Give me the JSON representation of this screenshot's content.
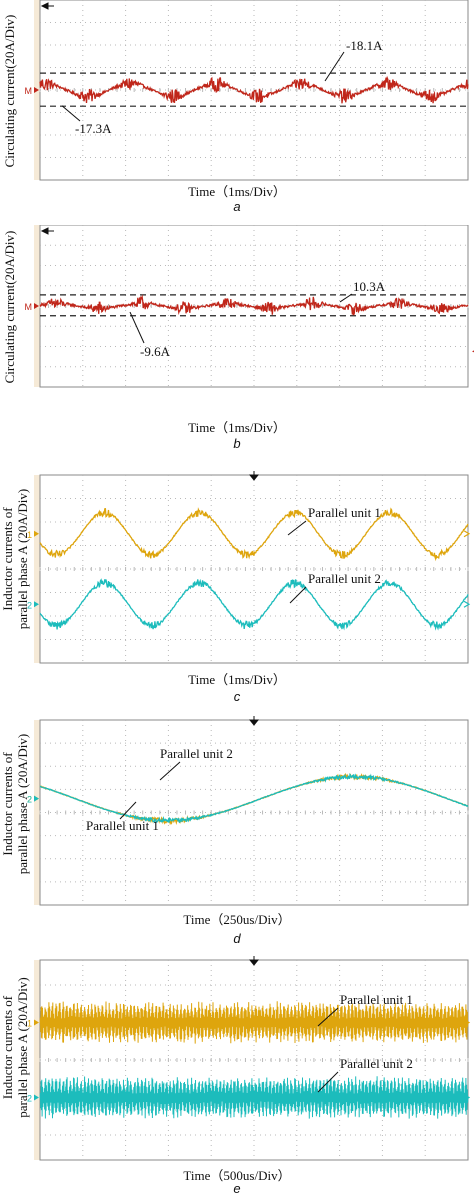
{
  "colors": {
    "grid": "#b9b9b9",
    "refline": "#222222",
    "circulating": "#c0261a",
    "unit1": "#dea50d",
    "unit2": "#1cbcbc",
    "background": "#ffffff",
    "strip": "#f6ead7"
  },
  "chart_data": [
    {
      "type": "line",
      "panel": "a",
      "ylabel": "Circulating current(20A/Div)",
      "xlabel": "Time（1ms/Div）",
      "x_divisions": 10,
      "y_divisions": 8,
      "grid": true,
      "channel_marker": "M",
      "series": [
        {
          "color": "#c0261a",
          "offset_div": 0.0,
          "amplitude_div": 0.28,
          "cycles": 5,
          "phase": 1.2,
          "noise_div": 0.35,
          "baseline_div": 0.0
        }
      ],
      "reference_lines": [
        {
          "value_A": -18.1,
          "offset_div": 0.75
        },
        {
          "value_A": -17.3,
          "offset_div": -0.72
        }
      ],
      "annotations": [
        {
          "text": "-18.1A",
          "pos": "upper-right"
        },
        {
          "text": "-17.3A",
          "pos": "lower-left"
        }
      ]
    },
    {
      "type": "line",
      "panel": "b",
      "ylabel": "Circulating current(20A/Div)",
      "xlabel": "Time（1ms/Div）",
      "x_divisions": 10,
      "y_divisions": 8,
      "grid": true,
      "channel_marker": "M",
      "series": [
        {
          "color": "#c0261a",
          "offset_div": 0.0,
          "amplitude_div": 0.12,
          "cycles": 5,
          "phase": 0.4,
          "noise_div": 0.35,
          "baseline_div": 0.0
        }
      ],
      "reference_lines": [
        {
          "value_A": 10.3,
          "offset_div": 0.55
        },
        {
          "value_A": -9.6,
          "offset_div": -0.48
        }
      ],
      "annotations": [
        {
          "text": "10.3A",
          "pos": "upper-right"
        },
        {
          "text": "-9.6A",
          "pos": "lower-center"
        }
      ]
    },
    {
      "type": "line",
      "panel": "c",
      "ylabel": "Inductor currents of parallel phase A (20A/Div)",
      "xlabel": "Time（1ms/Div）",
      "x_divisions": 10,
      "y_divisions": 8,
      "grid": true,
      "series": [
        {
          "name": "Parallel unit 1",
          "channel": "1",
          "color": "#dea50d",
          "offset_div": 1.5,
          "amplitude_div": 0.9,
          "cycles": 4.5,
          "phase": 3.6,
          "noise_div": 0.18
        },
        {
          "name": "Parallel unit 2",
          "channel": "2",
          "color": "#1cbcbc",
          "offset_div": -1.5,
          "amplitude_div": 0.9,
          "cycles": 4.5,
          "phase": 3.6,
          "noise_div": 0.18
        }
      ],
      "annotations": [
        {
          "text": "Parallel unit 1",
          "pos": "upper-right"
        },
        {
          "text": "Parallel unit 2",
          "pos": "middle-right"
        }
      ]
    },
    {
      "type": "line",
      "panel": "d",
      "ylabel": "Inductor currents of parallel phase A (20A/Div)",
      "xlabel": "Time（250us/Div）",
      "x_divisions": 10,
      "y_divisions": 8,
      "grid": true,
      "channel_marker": "2",
      "series": [
        {
          "name": "Parallel unit 1",
          "color": "#dea50d",
          "offset_div": 0.6,
          "amplitude_div": 0.95,
          "cycles": 1.15,
          "phase": 2.55,
          "noise_div": 0.12
        },
        {
          "name": "Parallel unit 2",
          "color": "#1cbcbc",
          "offset_div": 0.6,
          "amplitude_div": 0.95,
          "cycles": 1.15,
          "phase": 2.55,
          "noise_div": 0.1
        }
      ],
      "annotations": [
        {
          "text": "Parallel unit 2",
          "pos": "upper-left"
        },
        {
          "text": "Parallel unit 1",
          "pos": "lower-left"
        }
      ]
    },
    {
      "type": "line",
      "panel": "e",
      "ylabel": "Inductor currents of parallel phase A (20A/Div)",
      "xlabel": "Time（500us/Div）",
      "x_divisions": 10,
      "y_divisions": 8,
      "grid": true,
      "series": [
        {
          "name": "Parallel unit 1",
          "channel": "1",
          "color": "#dea50d",
          "offset_div": 1.5,
          "amplitude_div": 0.85,
          "cycles": 90,
          "phase": 0,
          "noise_div": 0.15,
          "band": true
        },
        {
          "name": "Parallel unit 2",
          "channel": "2",
          "color": "#1cbcbc",
          "offset_div": -1.5,
          "amplitude_div": 0.85,
          "cycles": 90,
          "phase": 0,
          "noise_div": 0.15,
          "band": true
        }
      ],
      "annotations": [
        {
          "text": "Parallel unit 1",
          "pos": "upper-right"
        },
        {
          "text": "Parallel unit 2",
          "pos": "middle-right"
        }
      ]
    }
  ],
  "panels": [
    {
      "id": "a",
      "ylabel": "Circulating current(20A/Div)",
      "xlabel": "Time（1ms/Div）",
      "letter": "a"
    },
    {
      "id": "b",
      "ylabel": "Circulating current(20A/Div)",
      "xlabel": "Time（1ms/Div）",
      "letter": "b"
    },
    {
      "id": "c",
      "ylabel_line1": "Inductor currents of",
      "ylabel_line2": "parallel phase A (20A/Div)",
      "xlabel": "Time（1ms/Div）",
      "letter": "c"
    },
    {
      "id": "d",
      "ylabel_line1": "Inductor currents of",
      "ylabel_line2": "parallel phase A (20A/Div)",
      "xlabel": "Time（250us/Div）",
      "letter": "d"
    },
    {
      "id": "e",
      "ylabel_line1": "Inductor currents of",
      "ylabel_line2": "parallel phase A (20A/Div)",
      "xlabel": "Time（500us/Div）",
      "letter": "e"
    }
  ]
}
